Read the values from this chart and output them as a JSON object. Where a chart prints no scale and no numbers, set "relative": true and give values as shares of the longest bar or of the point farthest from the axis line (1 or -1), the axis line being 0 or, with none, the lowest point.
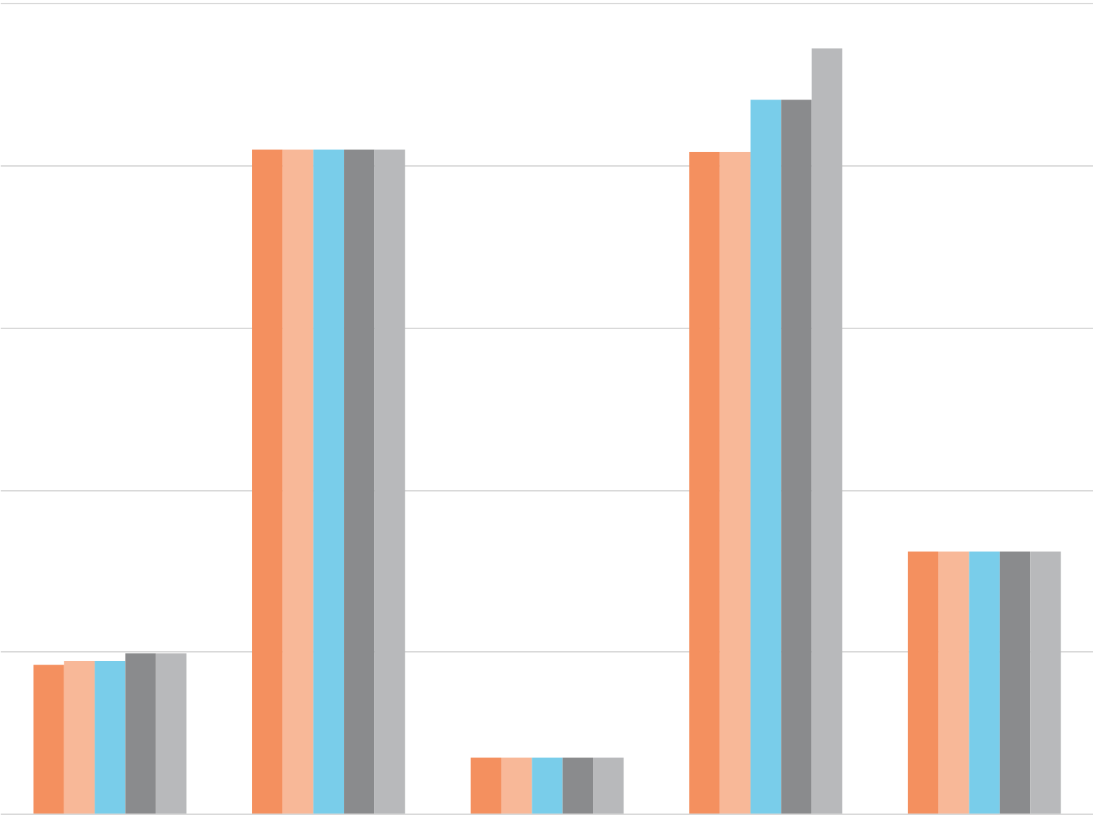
{
  "chart_data": {
    "type": "bar",
    "relative": true,
    "grid": "y",
    "categories": [
      null,
      null,
      null,
      null,
      null
    ],
    "series": [
      {
        "color": "#f4905f",
        "values": [
          0.195,
          0.868,
          0.074,
          0.865,
          0.343
        ]
      },
      {
        "color": "#f8b898",
        "values": [
          0.2,
          0.868,
          0.074,
          0.865,
          0.343
        ]
      },
      {
        "color": "#79cdea",
        "values": [
          0.2,
          0.868,
          0.074,
          0.933,
          0.343
        ]
      },
      {
        "color": "#8a8b8d",
        "values": [
          0.21,
          0.868,
          0.074,
          0.933,
          0.343
        ]
      },
      {
        "color": "#b8b9bb",
        "values": [
          0.21,
          0.868,
          0.074,
          1,
          0.343
        ]
      }
    ]
  }
}
